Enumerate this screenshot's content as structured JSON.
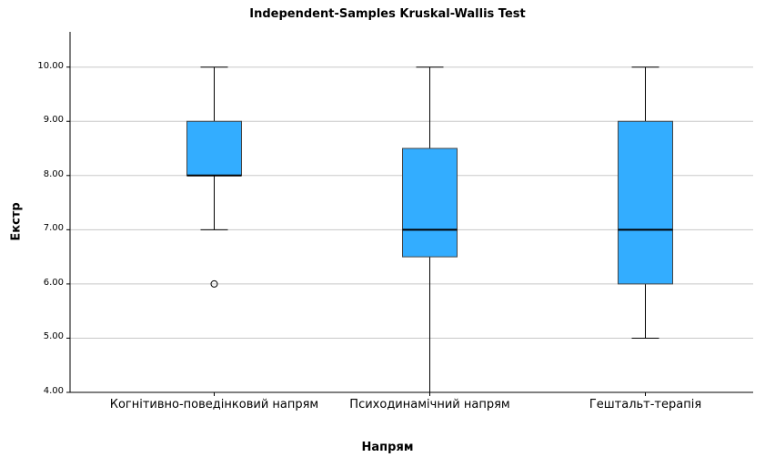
{
  "chart_data": {
    "type": "box",
    "title": "Independent-Samples Kruskal-Wallis Test",
    "xlabel": "Напрям",
    "ylabel": "Екстр",
    "categories": [
      "Когнітивно-поведінковий напрям",
      "Психодинамічний напрям",
      "Гештальт-терапія"
    ],
    "boxes": [
      {
        "whislo": 7,
        "q1": 8,
        "median": 8,
        "q3": 9,
        "whishi": 10,
        "fliers": [
          6
        ]
      },
      {
        "whislo": 4,
        "q1": 6.5,
        "median": 7,
        "q3": 8.5,
        "whishi": 10,
        "fliers": []
      },
      {
        "whislo": 5,
        "q1": 6,
        "median": 7,
        "q3": 9,
        "whishi": 10,
        "fliers": []
      }
    ],
    "color": "#33adff",
    "ylim": [
      4,
      10.65
    ],
    "yticks": [
      {
        "value": 4,
        "label": "4.00"
      },
      {
        "value": 5,
        "label": "5.00"
      },
      {
        "value": 6,
        "label": "6.00"
      },
      {
        "value": 7,
        "label": "7.00"
      },
      {
        "value": 8,
        "label": "8.00"
      },
      {
        "value": 9,
        "label": "9.00"
      },
      {
        "value": 10,
        "label": "10.00"
      }
    ],
    "grid": true
  }
}
